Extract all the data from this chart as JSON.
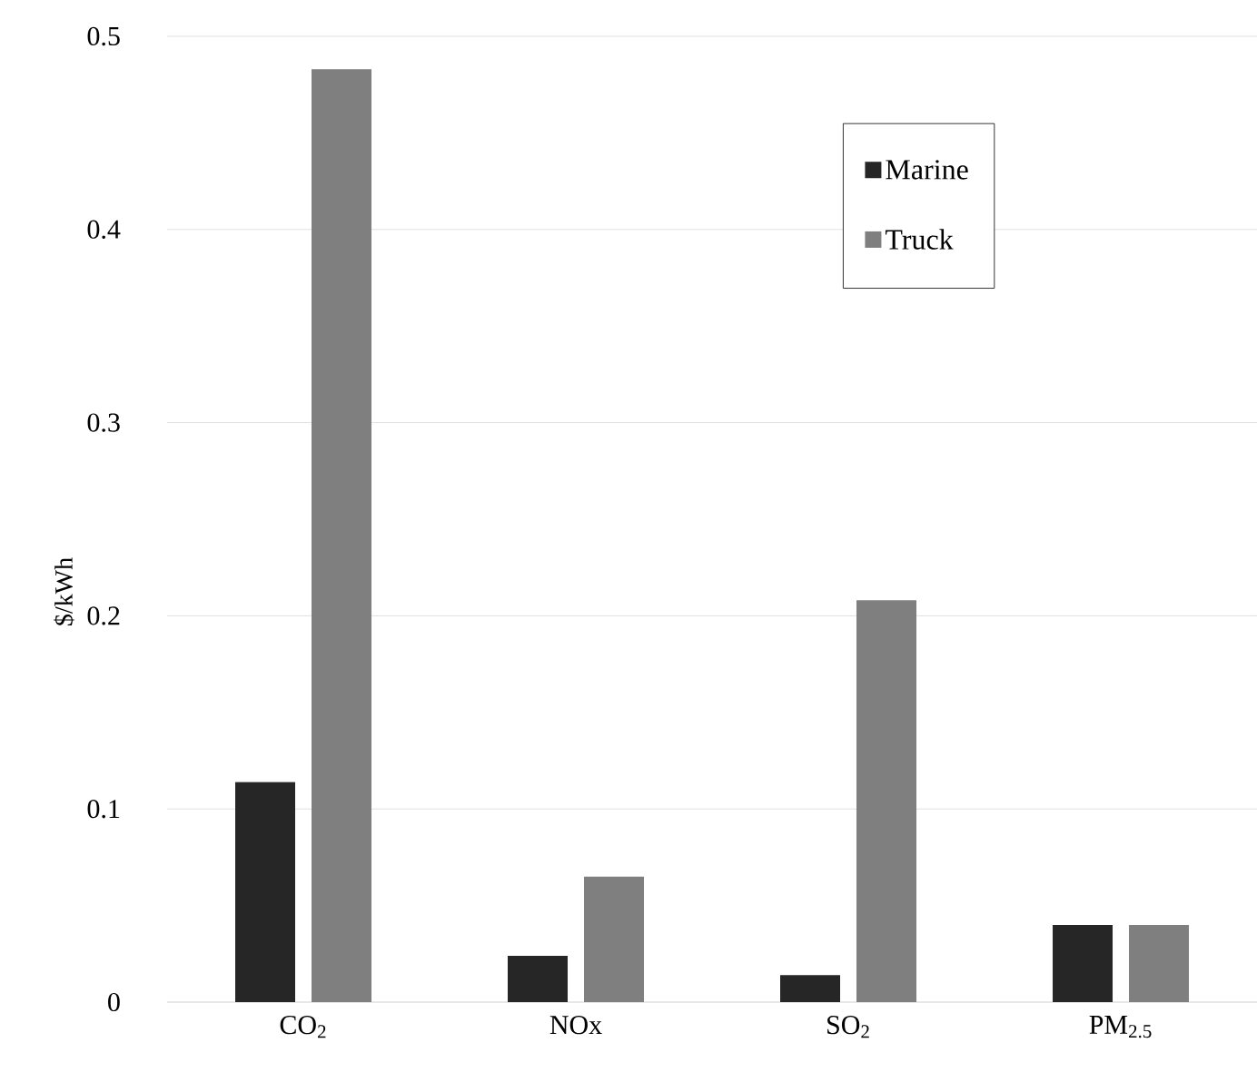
{
  "chart_data": {
    "type": "bar",
    "ylabel": "$/kWh",
    "categories": [
      "CO$_{2}$",
      "NOx",
      "SO$_{2}$",
      "PM$_{2.5}$"
    ],
    "series": [
      {
        "name": "Marine",
        "color": "#262626",
        "values": [
          0.114,
          0.024,
          0.014,
          0.04
        ]
      },
      {
        "name": "Truck",
        "color": "#7f7f7f",
        "values": [
          0.483,
          0.065,
          0.208,
          0.04
        ]
      }
    ],
    "ylim": [
      0,
      0.5
    ],
    "yticks": [
      0,
      0.1,
      0.2,
      0.3,
      0.4,
      0.5
    ],
    "grid": "y",
    "legend": "top right"
  }
}
